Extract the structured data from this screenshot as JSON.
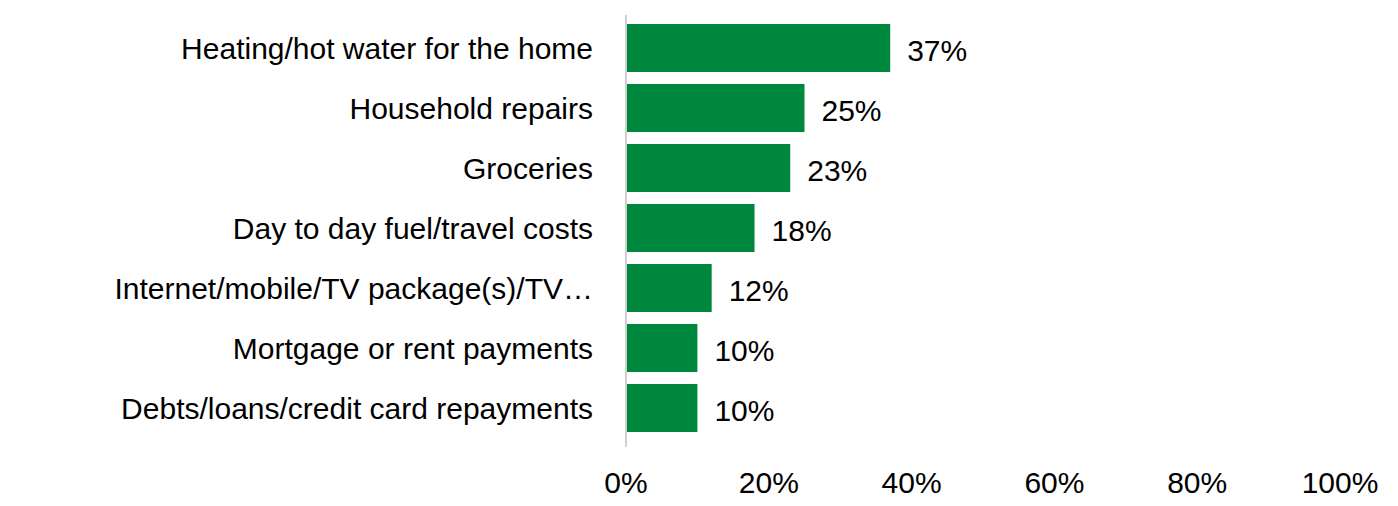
{
  "chart_data": {
    "type": "bar",
    "orientation": "horizontal",
    "categories": [
      "Heating/hot water for the home",
      "Household repairs",
      "Groceries",
      "Day to day fuel/travel costs",
      "Internet/mobile/TV package(s)/TV…",
      "Mortgage or rent payments",
      "Debts/loans/credit card repayments"
    ],
    "values": [
      37,
      25,
      23,
      18,
      12,
      10,
      10
    ],
    "value_labels": [
      "37%",
      "25%",
      "23%",
      "18%",
      "12%",
      "10%",
      "10%"
    ],
    "data_labels": true,
    "color": "#00873e",
    "xlim": [
      0,
      100
    ],
    "xticks": [
      {
        "value": 0,
        "label": "0%"
      },
      {
        "value": 20,
        "label": "20%"
      },
      {
        "value": 40,
        "label": "40%"
      },
      {
        "value": 60,
        "label": "60%"
      },
      {
        "value": 80,
        "label": "80%"
      },
      {
        "value": 100,
        "label": "100%"
      }
    ],
    "grid": false
  }
}
